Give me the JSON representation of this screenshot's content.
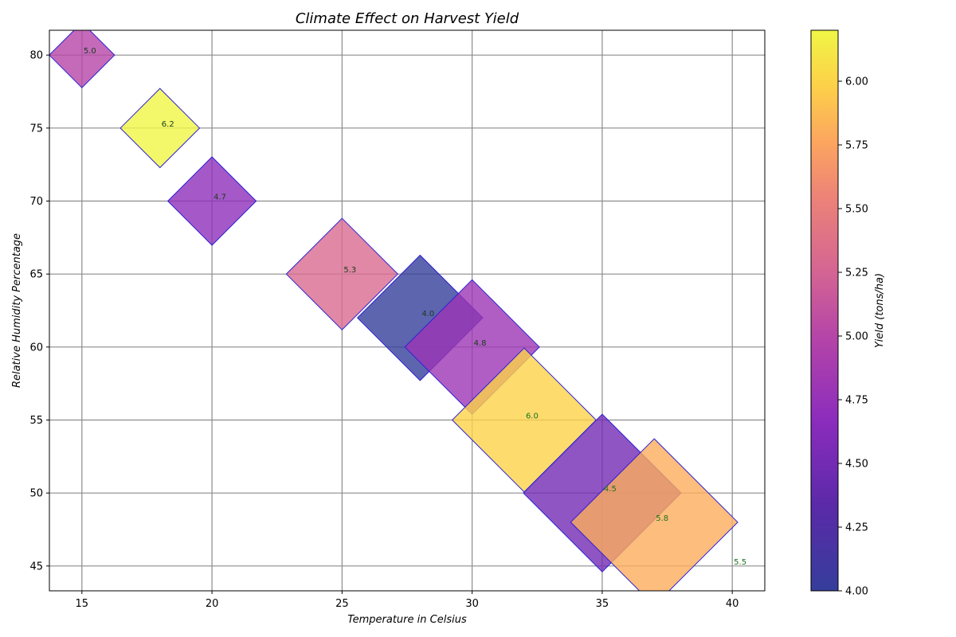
{
  "chart_data": {
    "type": "scatter",
    "title": "Climate Effect on Harvest Yield",
    "xlabel": "Temperature in Celsius",
    "ylabel": "Relative Humidity Percentage",
    "colorbar_label": "Yield (tons/ha)",
    "xlim": [
      13.75,
      41.25
    ],
    "ylim": [
      43.3,
      81.7
    ],
    "xticks": [
      "15",
      "20",
      "25",
      "30",
      "35",
      "40"
    ],
    "yticks": [
      "45",
      "50",
      "55",
      "60",
      "65",
      "70",
      "75",
      "80"
    ],
    "colorbar_range": [
      4.0,
      6.2
    ],
    "colorbar_ticks": [
      "4.00",
      "4.25",
      "4.50",
      "4.75",
      "5.00",
      "5.25",
      "5.50",
      "5.75",
      "6.00"
    ],
    "grid": true,
    "colormap": "plasma",
    "marker": "diamond",
    "points": [
      {
        "x": 15,
        "y": 80,
        "yield": 5.0,
        "label": "5.0"
      },
      {
        "x": 18,
        "y": 75,
        "yield": 6.2,
        "label": "6.2"
      },
      {
        "x": 20,
        "y": 70,
        "yield": 4.7,
        "label": "4.7"
      },
      {
        "x": 25,
        "y": 65,
        "yield": 5.3,
        "label": "5.3"
      },
      {
        "x": 28,
        "y": 62,
        "yield": 4.0,
        "label": "4.0"
      },
      {
        "x": 30,
        "y": 60,
        "yield": 4.8,
        "label": "4.8"
      },
      {
        "x": 32,
        "y": 55,
        "yield": 6.0,
        "label": "6.0"
      },
      {
        "x": 35,
        "y": 50,
        "yield": 4.5,
        "label": "4.5"
      },
      {
        "x": 37,
        "y": 48,
        "yield": 5.8,
        "label": "5.8"
      },
      {
        "x": 40,
        "y": 45,
        "yield": 5.5,
        "label": "5.5"
      }
    ]
  }
}
